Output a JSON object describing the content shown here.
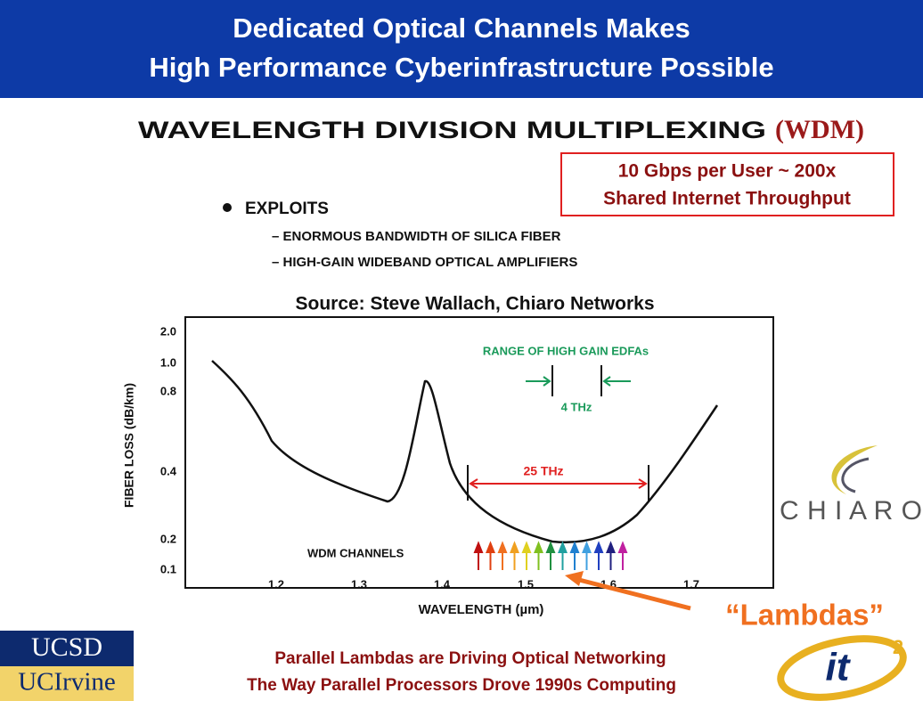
{
  "header": {
    "title_line1": "Dedicated Optical Channels Makes",
    "title_line2": "High Performance Cyberinfrastructure Possible"
  },
  "heading": {
    "text": "WAVELENGTH DIVISION MULTIPLEXING",
    "abbr": "(WDM)"
  },
  "callout": {
    "line1": "10 Gbps per User ~ 200x",
    "line2": "Shared Internet Throughput"
  },
  "bullets": {
    "main": "EXPLOITS",
    "items": [
      "ENORMOUS BANDWIDTH OF SILICA FIBER",
      "HIGH-GAIN WIDEBAND OPTICAL AMPLIFIERS"
    ]
  },
  "source": "Source: Steve Wallach, Chiaro Networks",
  "figure": {
    "y_axis_title": "FIBER LOSS (dB/km)",
    "x_axis_title": "WAVELENGTH (µm)",
    "y_ticks": [
      "2.0",
      "1.0",
      "0.8",
      "0.4",
      "0.2",
      "0.1"
    ],
    "x_ticks": [
      "1.2",
      "1.3",
      "1.4",
      "1.5",
      "1.6",
      "1.7"
    ],
    "edfa_label": "RANGE OF HIGH GAIN EDFAs",
    "edfa_width": "4 THz",
    "band_width": "25 THz",
    "channels_label": "WDM CHANNELS"
  },
  "lambdas": "“Lambdas”",
  "footer": {
    "line1": "Parallel Lambdas are Driving Optical Networking",
    "line2": "The Way Parallel Processors Drove 1990s Computing"
  },
  "logos": {
    "ucsd": "UCSD",
    "uci": "UCIrvine",
    "chiaro": "C H I A R O",
    "it": "it",
    "it_sup": "2"
  }
}
